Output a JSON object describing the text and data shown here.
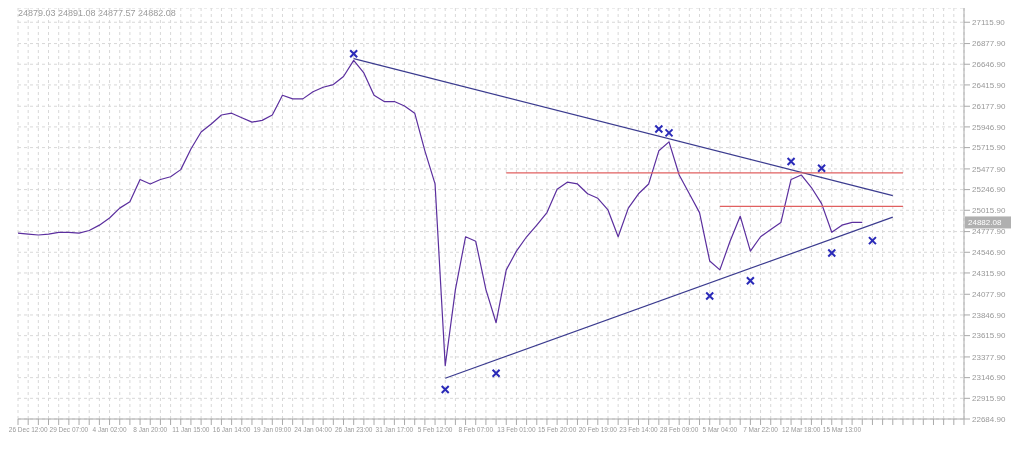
{
  "chart_data": {
    "type": "line",
    "categories": [
      null,
      "26 Dec 12:00",
      null,
      null,
      null,
      "29 Dec 07:00",
      null,
      null,
      null,
      "4 Jan 02:00",
      null,
      null,
      null,
      "8 Jan 20:00",
      null,
      null,
      null,
      "11 Jan 15:00",
      null,
      null,
      null,
      "16 Jan 14:00",
      null,
      null,
      null,
      "19 Jan 09:00",
      null,
      null,
      null,
      "24 Jan 04:00",
      null,
      null,
      null,
      "26 Jan 23:00",
      null,
      null,
      null,
      "31 Jan 17:00",
      null,
      null,
      null,
      "5 Feb 12:00",
      null,
      null,
      null,
      "8 Feb 07:00",
      null,
      null,
      null,
      "13 Feb 01:00",
      null,
      null,
      null,
      "15 Feb 20:00",
      null,
      null,
      null,
      "20 Feb 19:00",
      null,
      null,
      null,
      "23 Feb 14:00",
      null,
      null,
      null,
      "28 Feb 09:00",
      null,
      null,
      null,
      "5 Mar 04:00",
      null,
      null,
      null,
      "7 Mar 22:00",
      null,
      null,
      null,
      "12 Mar 18:00",
      null,
      null,
      null,
      "15 Mar 13:00",
      null,
      null,
      null,
      null,
      null,
      null,
      null,
      null,
      null,
      null,
      null,
      null
    ],
    "series": [
      {
        "color": "#5b2f9e",
        "values": [
          24760,
          24750,
          24740,
          24750,
          24770,
          24770,
          24760,
          24790,
          24850,
          24930,
          25040,
          25110,
          25360,
          25310,
          25360,
          25390,
          25470,
          25700,
          25890,
          25980,
          26080,
          26100,
          26050,
          26000,
          26020,
          26080,
          26300,
          26260,
          26260,
          26340,
          26390,
          26420,
          26510,
          26690,
          26550,
          26300,
          26230,
          26230,
          26180,
          26100,
          25680,
          25310,
          23280,
          24130,
          24720,
          24670,
          24130,
          23760,
          24350,
          24560,
          24720,
          24850,
          24990,
          25250,
          25330,
          25310,
          25200,
          25150,
          25020,
          24720,
          25040,
          25200,
          25310,
          25680,
          25780,
          25410,
          25200,
          24990,
          24450,
          24350,
          24670,
          24950,
          24560,
          24720,
          24800,
          24880,
          25360,
          25410,
          25270,
          25090,
          24770,
          24850,
          24880,
          24880,
          null,
          null,
          null,
          null,
          null,
          null,
          null,
          null,
          null,
          null
        ]
      },
      {
        "type": "line",
        "color": "#3b3b8f",
        "values": [
          null,
          null,
          null,
          null,
          null,
          null,
          null,
          null,
          null,
          null,
          null,
          null,
          null,
          null,
          null,
          null,
          null,
          null,
          null,
          null,
          null,
          null,
          null,
          null,
          null,
          null,
          null,
          null,
          null,
          null,
          null,
          null,
          null,
          26710,
          null,
          null,
          null,
          null,
          null,
          null,
          null,
          null,
          null,
          null,
          null,
          null,
          null,
          null,
          null,
          null,
          null,
          null,
          null,
          null,
          null,
          null,
          null,
          null,
          null,
          null,
          null,
          null,
          null,
          null,
          null,
          null,
          null,
          null,
          null,
          null,
          null,
          null,
          null,
          null,
          null,
          null,
          null,
          null,
          null,
          null,
          null,
          null,
          null,
          null,
          null,
          null,
          25180,
          null,
          null,
          null,
          null,
          null,
          null,
          null
        ]
      },
      {
        "type": "line",
        "color": "#3b3b8f",
        "values": [
          null,
          null,
          null,
          null,
          null,
          null,
          null,
          null,
          null,
          null,
          null,
          null,
          null,
          null,
          null,
          null,
          null,
          null,
          null,
          null,
          null,
          null,
          null,
          null,
          null,
          null,
          null,
          null,
          null,
          null,
          null,
          null,
          null,
          null,
          null,
          null,
          null,
          null,
          null,
          null,
          null,
          null,
          23140,
          null,
          null,
          null,
          null,
          null,
          null,
          null,
          null,
          null,
          null,
          null,
          null,
          null,
          null,
          null,
          null,
          null,
          null,
          null,
          null,
          null,
          null,
          null,
          null,
          null,
          null,
          null,
          null,
          null,
          null,
          null,
          null,
          null,
          null,
          null,
          null,
          null,
          null,
          null,
          null,
          null,
          null,
          null,
          24940,
          null,
          null,
          null,
          null,
          null,
          null,
          null
        ]
      },
      {
        "type": "line",
        "color": "#e06060",
        "values": [
          null,
          null,
          null,
          null,
          null,
          null,
          null,
          null,
          null,
          null,
          null,
          null,
          null,
          null,
          null,
          null,
          null,
          null,
          null,
          null,
          null,
          null,
          null,
          null,
          null,
          null,
          null,
          null,
          null,
          null,
          null,
          null,
          null,
          null,
          null,
          null,
          null,
          null,
          null,
          null,
          null,
          null,
          null,
          null,
          null,
          null,
          null,
          null,
          25433,
          null,
          null,
          null,
          null,
          null,
          null,
          null,
          null,
          null,
          null,
          null,
          null,
          null,
          null,
          null,
          null,
          null,
          null,
          null,
          null,
          null,
          null,
          null,
          null,
          null,
          null,
          null,
          null,
          null,
          null,
          null,
          null,
          null,
          null,
          null,
          null,
          null,
          null,
          25433,
          null,
          null,
          null,
          null,
          null,
          null
        ]
      },
      {
        "type": "line",
        "color": "#e06060",
        "values": [
          null,
          null,
          null,
          null,
          null,
          null,
          null,
          null,
          null,
          null,
          null,
          null,
          null,
          null,
          null,
          null,
          null,
          null,
          null,
          null,
          null,
          null,
          null,
          null,
          null,
          null,
          null,
          null,
          null,
          null,
          null,
          null,
          null,
          null,
          null,
          null,
          null,
          null,
          null,
          null,
          null,
          null,
          null,
          null,
          null,
          null,
          null,
          null,
          null,
          null,
          null,
          null,
          null,
          null,
          null,
          null,
          null,
          null,
          null,
          null,
          null,
          null,
          null,
          null,
          null,
          null,
          null,
          null,
          null,
          25060,
          null,
          null,
          null,
          null,
          null,
          null,
          null,
          null,
          null,
          null,
          null,
          null,
          null,
          null,
          null,
          null,
          null,
          25060,
          null,
          null,
          null,
          null,
          null,
          null
        ]
      },
      {
        "type": "scatter",
        "color": "#2a2ab8",
        "marker": "cross",
        "values": [
          null,
          null,
          null,
          null,
          null,
          null,
          null,
          null,
          null,
          null,
          null,
          null,
          null,
          null,
          null,
          null,
          null,
          null,
          null,
          null,
          null,
          null,
          null,
          null,
          null,
          null,
          null,
          null,
          null,
          null,
          null,
          null,
          null,
          26764,
          null,
          null,
          null,
          null,
          null,
          null,
          null,
          null,
          23015,
          null,
          null,
          null,
          null,
          23196,
          null,
          null,
          null,
          null,
          null,
          null,
          null,
          null,
          null,
          null,
          null,
          null,
          null,
          null,
          null,
          25923,
          25880,
          null,
          null,
          null,
          24059,
          null,
          null,
          null,
          24229,
          null,
          null,
          null,
          25561,
          null,
          null,
          25486,
          24538,
          null,
          null,
          null,
          24677,
          null,
          null,
          null,
          null,
          null,
          null,
          null,
          null,
          null
        ]
      }
    ],
    "ylim": [
      22684.9,
      27275
    ],
    "yticks": [
      {
        "value": 22684.9,
        "label": "22684.90"
      },
      {
        "value": 22915.9,
        "label": "22915.90"
      },
      {
        "value": 23146.9,
        "label": "23146.90"
      },
      {
        "value": 23377.9,
        "label": "23377.90"
      },
      {
        "value": 23615.9,
        "label": "23615.90"
      },
      {
        "value": 23846.9,
        "label": "23846.90"
      },
      {
        "value": 24077.9,
        "label": "24077.90"
      },
      {
        "value": 24315.9,
        "label": "24315.90"
      },
      {
        "value": 24546.9,
        "label": "24546.90"
      },
      {
        "value": 24777.9,
        "label": "24777.90"
      },
      {
        "value": 25015.9,
        "label": "25015.90"
      },
      {
        "value": 25246.9,
        "label": "25246.90"
      },
      {
        "value": 25477.9,
        "label": "25477.90"
      },
      {
        "value": 25715.9,
        "label": "25715.90"
      },
      {
        "value": 25946.9,
        "label": "25946.90"
      },
      {
        "value": 26177.9,
        "label": "26177.90"
      },
      {
        "value": 26415.9,
        "label": "26415.90"
      },
      {
        "value": 26646.9,
        "label": "26646.90"
      },
      {
        "value": 26877.9,
        "label": "26877.90"
      },
      {
        "value": 27115.9,
        "label": "27115.90"
      }
    ],
    "grid": true,
    "annotations": [
      "24879.03 24891.08 24877.57 24882.08",
      "24882.08"
    ]
  }
}
